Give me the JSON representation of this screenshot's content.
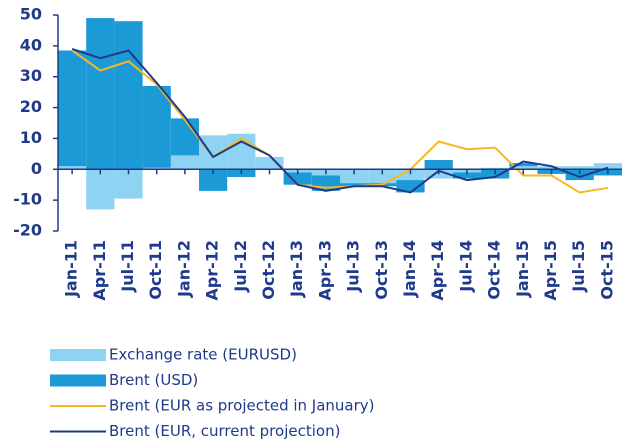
{
  "chart_data": {
    "type": "bar",
    "categories": [
      "Jan-11",
      "Apr-11",
      "Jul-11",
      "Oct-11",
      "Jan-12",
      "Apr-12",
      "Jul-12",
      "Oct-12",
      "Jan-13",
      "Apr-13",
      "Jul-13",
      "Oct-13",
      "Jan-14",
      "Apr-14",
      "Jul-14",
      "Oct-14",
      "Jan-15",
      "Apr-15",
      "Jul-15",
      "Oct-15"
    ],
    "series": [
      {
        "name": "Exchange rate (EURUSD)",
        "type": "bar",
        "color": "#8fd3f3",
        "values": [
          1,
          -13,
          -9.5,
          0.5,
          4.5,
          11,
          11.5,
          4,
          -1,
          -2,
          -4.5,
          -4.5,
          -3.5,
          -3,
          -1,
          0.5,
          1,
          1,
          1,
          2
        ]
      },
      {
        "name": "Brent (USD)",
        "type": "bar",
        "color": "#1b9ad6",
        "values": [
          37.5,
          49,
          48,
          26.5,
          12,
          -7,
          -2.5,
          0,
          -4,
          -5,
          -1,
          -1,
          -4,
          3,
          -2,
          -3,
          1,
          -1.5,
          -3.5,
          -2
        ]
      },
      {
        "name": "Brent (EUR as projected in January)",
        "type": "line",
        "color": "#f6b825",
        "values": [
          38.5,
          32,
          35,
          27.5,
          16,
          4,
          10,
          4.5,
          -5,
          -6,
          -5.5,
          -5,
          0,
          9,
          6.5,
          7,
          -2,
          -2,
          -7.5,
          -6
        ]
      },
      {
        "name": "Brent (EUR, current projection)",
        "type": "line",
        "color": "#1f3a8a",
        "values": [
          39,
          36,
          38.5,
          28,
          17,
          4,
          9,
          4.5,
          -5,
          -7,
          -5.5,
          -5.5,
          -7.5,
          -0.5,
          -3.5,
          -2.5,
          2.5,
          1,
          -2.5,
          0.5
        ]
      }
    ],
    "ylim": [
      -20,
      50
    ],
    "yticks": [
      -20,
      -10,
      0,
      10,
      20,
      30,
      40,
      50
    ]
  }
}
